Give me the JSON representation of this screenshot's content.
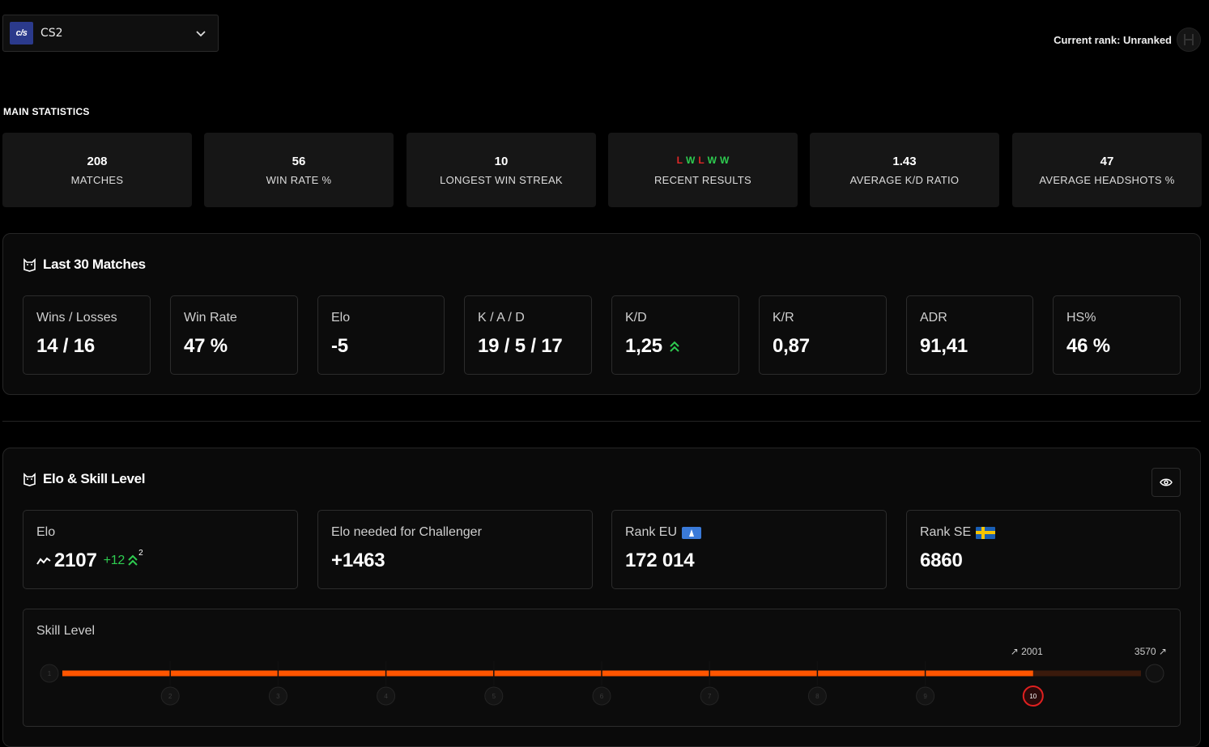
{
  "game": {
    "logo_text": "c/s",
    "name": "CS2"
  },
  "rank": {
    "label": "Current rank: Unranked"
  },
  "main": {
    "title": "MAIN STATISTICS",
    "cards": [
      {
        "value": "208",
        "label": "MATCHES"
      },
      {
        "value": "56",
        "label": "WIN RATE %"
      },
      {
        "value": "10",
        "label": "LONGEST WIN STREAK"
      },
      {
        "value": "",
        "label": "RECENT RESULTS"
      },
      {
        "value": "1.43",
        "label": "AVERAGE K/D RATIO"
      },
      {
        "value": "47",
        "label": "AVERAGE HEADSHOTS %"
      }
    ],
    "recent_results": [
      "L",
      "W",
      "L",
      "W",
      "W"
    ]
  },
  "last30": {
    "title": "Last 30 Matches",
    "cards": [
      {
        "label": "Wins / Losses",
        "value": "14 / 16"
      },
      {
        "label": "Win Rate",
        "value": "47 %"
      },
      {
        "label": "Elo",
        "value": "-5"
      },
      {
        "label": "K / A / D",
        "value": "19 / 5 / 17"
      },
      {
        "label": "K/D",
        "value": "1,25"
      },
      {
        "label": "K/R",
        "value": "0,87"
      },
      {
        "label": "ADR",
        "value": "91,41"
      },
      {
        "label": "HS%",
        "value": "46 %"
      }
    ]
  },
  "elo": {
    "title": "Elo & Skill Level",
    "cards": [
      {
        "label": "Elo",
        "value": "2107",
        "delta": "+12",
        "delta_sup": "2"
      },
      {
        "label": "Elo needed for Challenger",
        "value": "+1463"
      },
      {
        "label": "Rank EU",
        "value": "172 014"
      },
      {
        "label": "Rank SE",
        "value": "6860"
      }
    ],
    "skill": {
      "label": "Skill Level",
      "current_elo_marker": "2001",
      "max_elo_marker": "3570",
      "levels": [
        "1",
        "2",
        "3",
        "4",
        "5",
        "6",
        "7",
        "8",
        "9",
        "10"
      ],
      "current_level": 10,
      "progress_fraction": 0.9,
      "colors": {
        "bar": "#ff5500",
        "track": "#3a1a0c",
        "level10": "#e02020"
      }
    }
  }
}
